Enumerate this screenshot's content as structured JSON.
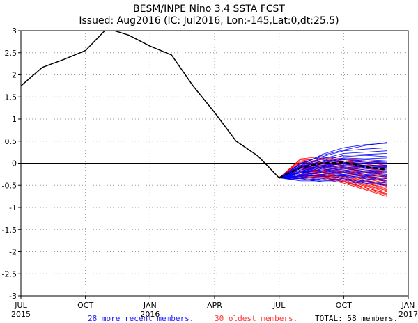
{
  "chart_data": {
    "type": "line",
    "title": "BESM/INPE Nino 3.4 SSTA FCST",
    "subtitle": "Issued: Aug2016 (IC: Jul2016, Lon:-145,Lat:0,dt:25,5)",
    "ylim": [
      -3,
      3
    ],
    "yticks": [
      "3",
      "2.5",
      "2",
      "1.5",
      "1",
      "0.5",
      "0",
      "-0.5",
      "-1",
      "-1.5",
      "-2",
      "-2.5",
      "-3"
    ],
    "xlim_months": [
      0,
      18
    ],
    "xticks": [
      {
        "month": 0,
        "label": "JUL",
        "sublabel": "2015"
      },
      {
        "month": 3,
        "label": "OCT",
        "sublabel": ""
      },
      {
        "month": 6,
        "label": "JAN",
        "sublabel": "2016"
      },
      {
        "month": 9,
        "label": "APR",
        "sublabel": ""
      },
      {
        "month": 12,
        "label": "JUL",
        "sublabel": ""
      },
      {
        "month": 15,
        "label": "OCT",
        "sublabel": ""
      },
      {
        "month": 18,
        "label": "JAN",
        "sublabel": "2017"
      }
    ],
    "observed": {
      "name": "observed",
      "color": "#000000",
      "x": [
        0,
        1,
        2,
        3,
        4,
        5,
        6,
        7,
        8,
        9,
        10,
        11,
        12
      ],
      "y": [
        1.75,
        2.17,
        2.35,
        2.55,
        3.05,
        2.9,
        2.65,
        2.45,
        1.75,
        1.15,
        0.5,
        0.17,
        -0.33
      ]
    },
    "ensemble_mean": {
      "name": "ensemble mean",
      "color": "#000000",
      "x": [
        12,
        13,
        14,
        15,
        16,
        17
      ],
      "y": [
        -0.33,
        -0.1,
        0.0,
        0.02,
        -0.08,
        -0.15
      ]
    },
    "members_recent": {
      "name": "28 more recent members",
      "color": "#0000ff",
      "count": 28,
      "x": [
        12,
        13,
        14,
        15,
        16,
        17
      ],
      "series": [
        [
          -0.33,
          -0.05,
          0.2,
          0.35,
          0.42,
          0.45
        ],
        [
          -0.33,
          -0.02,
          0.18,
          0.3,
          0.4,
          0.47
        ],
        [
          -0.33,
          0.0,
          0.15,
          0.28,
          0.32,
          0.35
        ],
        [
          -0.33,
          -0.08,
          0.1,
          0.22,
          0.25,
          0.28
        ],
        [
          -0.33,
          -0.1,
          0.05,
          0.18,
          0.2,
          0.22
        ],
        [
          -0.33,
          -0.06,
          0.12,
          0.15,
          0.18,
          0.15
        ],
        [
          -0.33,
          -0.12,
          0.02,
          0.12,
          0.1,
          0.12
        ],
        [
          -0.33,
          -0.15,
          0.0,
          0.1,
          0.08,
          0.05
        ],
        [
          -0.33,
          -0.08,
          0.05,
          0.08,
          0.05,
          0.02
        ],
        [
          -0.33,
          -0.12,
          -0.02,
          0.05,
          0.02,
          0.0
        ],
        [
          -0.33,
          -0.18,
          -0.05,
          0.02,
          0.0,
          -0.02
        ],
        [
          -0.33,
          -0.2,
          -0.08,
          0.0,
          -0.05,
          -0.05
        ],
        [
          -0.33,
          -0.15,
          -0.05,
          -0.02,
          -0.06,
          -0.08
        ],
        [
          -0.33,
          -0.22,
          -0.1,
          -0.05,
          -0.08,
          -0.1
        ],
        [
          -0.33,
          -0.18,
          -0.08,
          -0.05,
          -0.1,
          -0.12
        ],
        [
          -0.33,
          -0.25,
          -0.12,
          -0.08,
          -0.12,
          -0.15
        ],
        [
          -0.33,
          -0.2,
          -0.15,
          -0.1,
          -0.15,
          -0.18
        ],
        [
          -0.33,
          -0.28,
          -0.18,
          -0.12,
          -0.18,
          -0.2
        ],
        [
          -0.33,
          -0.22,
          -0.15,
          -0.15,
          -0.2,
          -0.22
        ],
        [
          -0.33,
          -0.3,
          -0.2,
          -0.18,
          -0.22,
          -0.25
        ],
        [
          -0.33,
          -0.25,
          -0.22,
          -0.2,
          -0.25,
          -0.28
        ],
        [
          -0.33,
          -0.32,
          -0.25,
          -0.22,
          -0.28,
          -0.3
        ],
        [
          -0.33,
          -0.28,
          -0.28,
          -0.25,
          -0.3,
          -0.35
        ],
        [
          -0.33,
          -0.35,
          -0.3,
          -0.28,
          -0.32,
          -0.38
        ],
        [
          -0.33,
          -0.38,
          -0.35,
          -0.3,
          -0.35,
          -0.4
        ],
        [
          -0.33,
          -0.3,
          -0.38,
          -0.35,
          -0.4,
          -0.45
        ],
        [
          -0.33,
          -0.4,
          -0.4,
          -0.38,
          -0.42,
          -0.48
        ],
        [
          -0.33,
          -0.35,
          -0.42,
          -0.42,
          -0.45,
          -0.5
        ]
      ]
    },
    "members_oldest": {
      "name": "30 oldest members",
      "color": "#ff0000",
      "count": 30,
      "x": [
        12,
        13,
        14,
        15,
        16,
        17
      ],
      "series": [
        [
          -0.33,
          0.1,
          0.15,
          0.1,
          0.05,
          0.0
        ],
        [
          -0.33,
          0.05,
          0.12,
          0.08,
          0.02,
          -0.05
        ],
        [
          -0.33,
          0.08,
          0.1,
          0.05,
          -0.02,
          -0.08
        ],
        [
          -0.33,
          0.02,
          0.08,
          0.02,
          -0.05,
          -0.1
        ],
        [
          -0.33,
          0.0,
          0.05,
          0.0,
          -0.08,
          -0.12
        ],
        [
          -0.33,
          -0.02,
          0.02,
          -0.02,
          -0.1,
          -0.15
        ],
        [
          -0.33,
          -0.05,
          0.0,
          -0.05,
          -0.12,
          -0.18
        ],
        [
          -0.33,
          -0.08,
          -0.02,
          -0.08,
          -0.15,
          -0.2
        ],
        [
          -0.33,
          -0.1,
          -0.05,
          -0.1,
          -0.18,
          -0.22
        ],
        [
          -0.33,
          -0.12,
          -0.08,
          -0.12,
          -0.2,
          -0.25
        ],
        [
          -0.33,
          -0.05,
          -0.05,
          -0.1,
          -0.2,
          -0.28
        ],
        [
          -0.33,
          -0.15,
          -0.1,
          -0.15,
          -0.22,
          -0.3
        ],
        [
          -0.33,
          -0.08,
          -0.12,
          -0.18,
          -0.25,
          -0.32
        ],
        [
          -0.33,
          -0.18,
          -0.15,
          -0.2,
          -0.28,
          -0.35
        ],
        [
          -0.33,
          -0.1,
          -0.08,
          -0.15,
          -0.28,
          -0.38
        ],
        [
          -0.33,
          -0.2,
          -0.18,
          -0.22,
          -0.3,
          -0.4
        ],
        [
          -0.33,
          -0.12,
          -0.12,
          -0.2,
          -0.32,
          -0.42
        ],
        [
          -0.33,
          -0.22,
          -0.2,
          -0.25,
          -0.35,
          -0.45
        ],
        [
          -0.33,
          -0.15,
          -0.15,
          -0.25,
          -0.38,
          -0.48
        ],
        [
          -0.33,
          -0.25,
          -0.22,
          -0.28,
          -0.4,
          -0.5
        ],
        [
          -0.33,
          -0.18,
          -0.2,
          -0.3,
          -0.42,
          -0.52
        ],
        [
          -0.33,
          -0.28,
          -0.25,
          -0.32,
          -0.45,
          -0.55
        ],
        [
          -0.33,
          -0.2,
          -0.22,
          -0.32,
          -0.45,
          -0.58
        ],
        [
          -0.33,
          -0.3,
          -0.28,
          -0.35,
          -0.48,
          -0.6
        ],
        [
          -0.33,
          -0.22,
          -0.25,
          -0.35,
          -0.5,
          -0.62
        ],
        [
          -0.33,
          -0.32,
          -0.3,
          -0.38,
          -0.52,
          -0.65
        ],
        [
          -0.33,
          -0.25,
          -0.28,
          -0.4,
          -0.55,
          -0.68
        ],
        [
          -0.33,
          -0.35,
          -0.32,
          -0.42,
          -0.55,
          -0.7
        ],
        [
          -0.33,
          -0.28,
          -0.3,
          -0.42,
          -0.58,
          -0.72
        ],
        [
          -0.33,
          -0.38,
          -0.35,
          -0.45,
          -0.6,
          -0.75
        ]
      ]
    },
    "footer": {
      "recent_label": "28 more recent members.",
      "oldest_label": "30 oldest members.",
      "total_label": "TOTAL: 58 members."
    }
  }
}
